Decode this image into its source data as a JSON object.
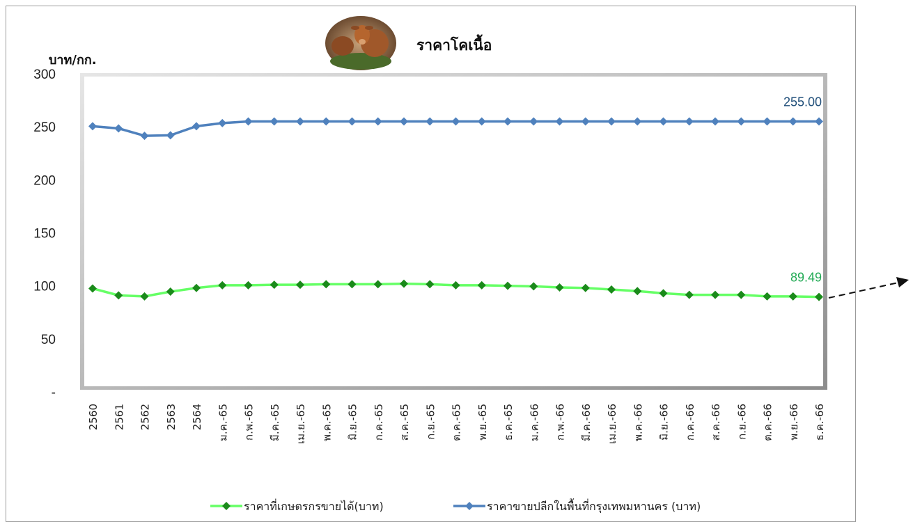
{
  "chart_data": {
    "type": "line",
    "title": "ราคาโคเนื้อ",
    "ylabel": "บาท/กก.",
    "ylim": [
      0,
      300
    ],
    "yticks": [
      "-",
      "50",
      "100",
      "150",
      "200",
      "250",
      "300"
    ],
    "categories": [
      "2560",
      "2561",
      "2562",
      "2563",
      "2564",
      "ม.ค.-65",
      "ก.พ.-65",
      "มี.ค.-65",
      "เม.ย.-65",
      "พ.ค.-65",
      "มิ.ย.-65",
      "ก.ค.-65",
      "ส.ค.-65",
      "ก.ย.-65",
      "ต.ค.-65",
      "พ.ย.-65",
      "ธ.ค.-65",
      "ม.ค.-66",
      "ก.พ.-66",
      "มี.ค.-66",
      "เม.ย.-66",
      "พ.ค.-66",
      "มิ.ย.-66",
      "ก.ค.-66",
      "ส.ค.-66",
      "ก.ย.-66",
      "ต.ค.-66",
      "พ.ย.-66",
      "ธ.ค.-66"
    ],
    "series": [
      {
        "name": "ราคาที่เกษตรกรขายได้(บาท)",
        "line_color": "#66ff66",
        "marker_color": "#1a8a1a",
        "values": [
          97.5,
          91.0,
          90.0,
          94.5,
          98.0,
          100.5,
          100.5,
          101.0,
          101.0,
          101.5,
          101.5,
          101.5,
          102.0,
          101.5,
          100.5,
          100.5,
          100.0,
          99.5,
          98.5,
          98.0,
          96.5,
          95.0,
          93.0,
          91.5,
          91.5,
          91.5,
          90.0,
          90.0,
          89.49
        ],
        "end_label": "89.49",
        "end_label_color": "#22aa55"
      },
      {
        "name": "ราคาขายปลีกในพื้นที่กรุงเทพมหานคร  (บาท)",
        "line_color": "#4f81bd",
        "marker_color": "#4f81bd",
        "values": [
          250.5,
          248.5,
          241.5,
          242.0,
          250.5,
          253.5,
          255.0,
          255.0,
          255.0,
          255.0,
          255.0,
          255.0,
          255.0,
          255.0,
          255.0,
          255.0,
          255.0,
          255.0,
          255.0,
          255.0,
          255.0,
          255.0,
          255.0,
          255.0,
          255.0,
          255.0,
          255.0,
          255.0,
          255.0
        ],
        "end_label": "255.00",
        "end_label_color": "#1f4e79"
      }
    ],
    "grid": false,
    "legend": "bottom"
  }
}
